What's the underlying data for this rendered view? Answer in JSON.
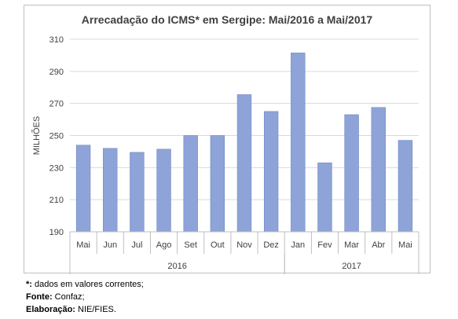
{
  "chart_data": {
    "type": "bar",
    "title": "Arrecadação do ICMS* em Sergipe: Mai/2016 a Mai/2017",
    "ylabel": "MILHÕES",
    "xlabel": "",
    "ylim": [
      190,
      310
    ],
    "yticks": [
      190,
      210,
      230,
      250,
      270,
      290,
      310
    ],
    "grid": true,
    "categories": [
      "Mai",
      "Jun",
      "Jul",
      "Ago",
      "Set",
      "Out",
      "Nov",
      "Dez",
      "Jan",
      "Fev",
      "Mar",
      "Abr",
      "Mai"
    ],
    "values": [
      244,
      242,
      239.5,
      241.5,
      250,
      250,
      275.5,
      265,
      301.5,
      233,
      263,
      267.5,
      247
    ],
    "year_groups": [
      {
        "label": "2016",
        "start": 0,
        "end": 7
      },
      {
        "label": "2017",
        "start": 8,
        "end": 12
      }
    ],
    "bar_color": "#8ea4d8"
  },
  "notes": {
    "line1_key": "*:",
    "line1_text": " dados em valores correntes;",
    "line2_key": "Fonte:",
    "line2_text": " Confaz;",
    "line3_key": "Elaboração:",
    "line3_text": " NIE/FIES."
  }
}
